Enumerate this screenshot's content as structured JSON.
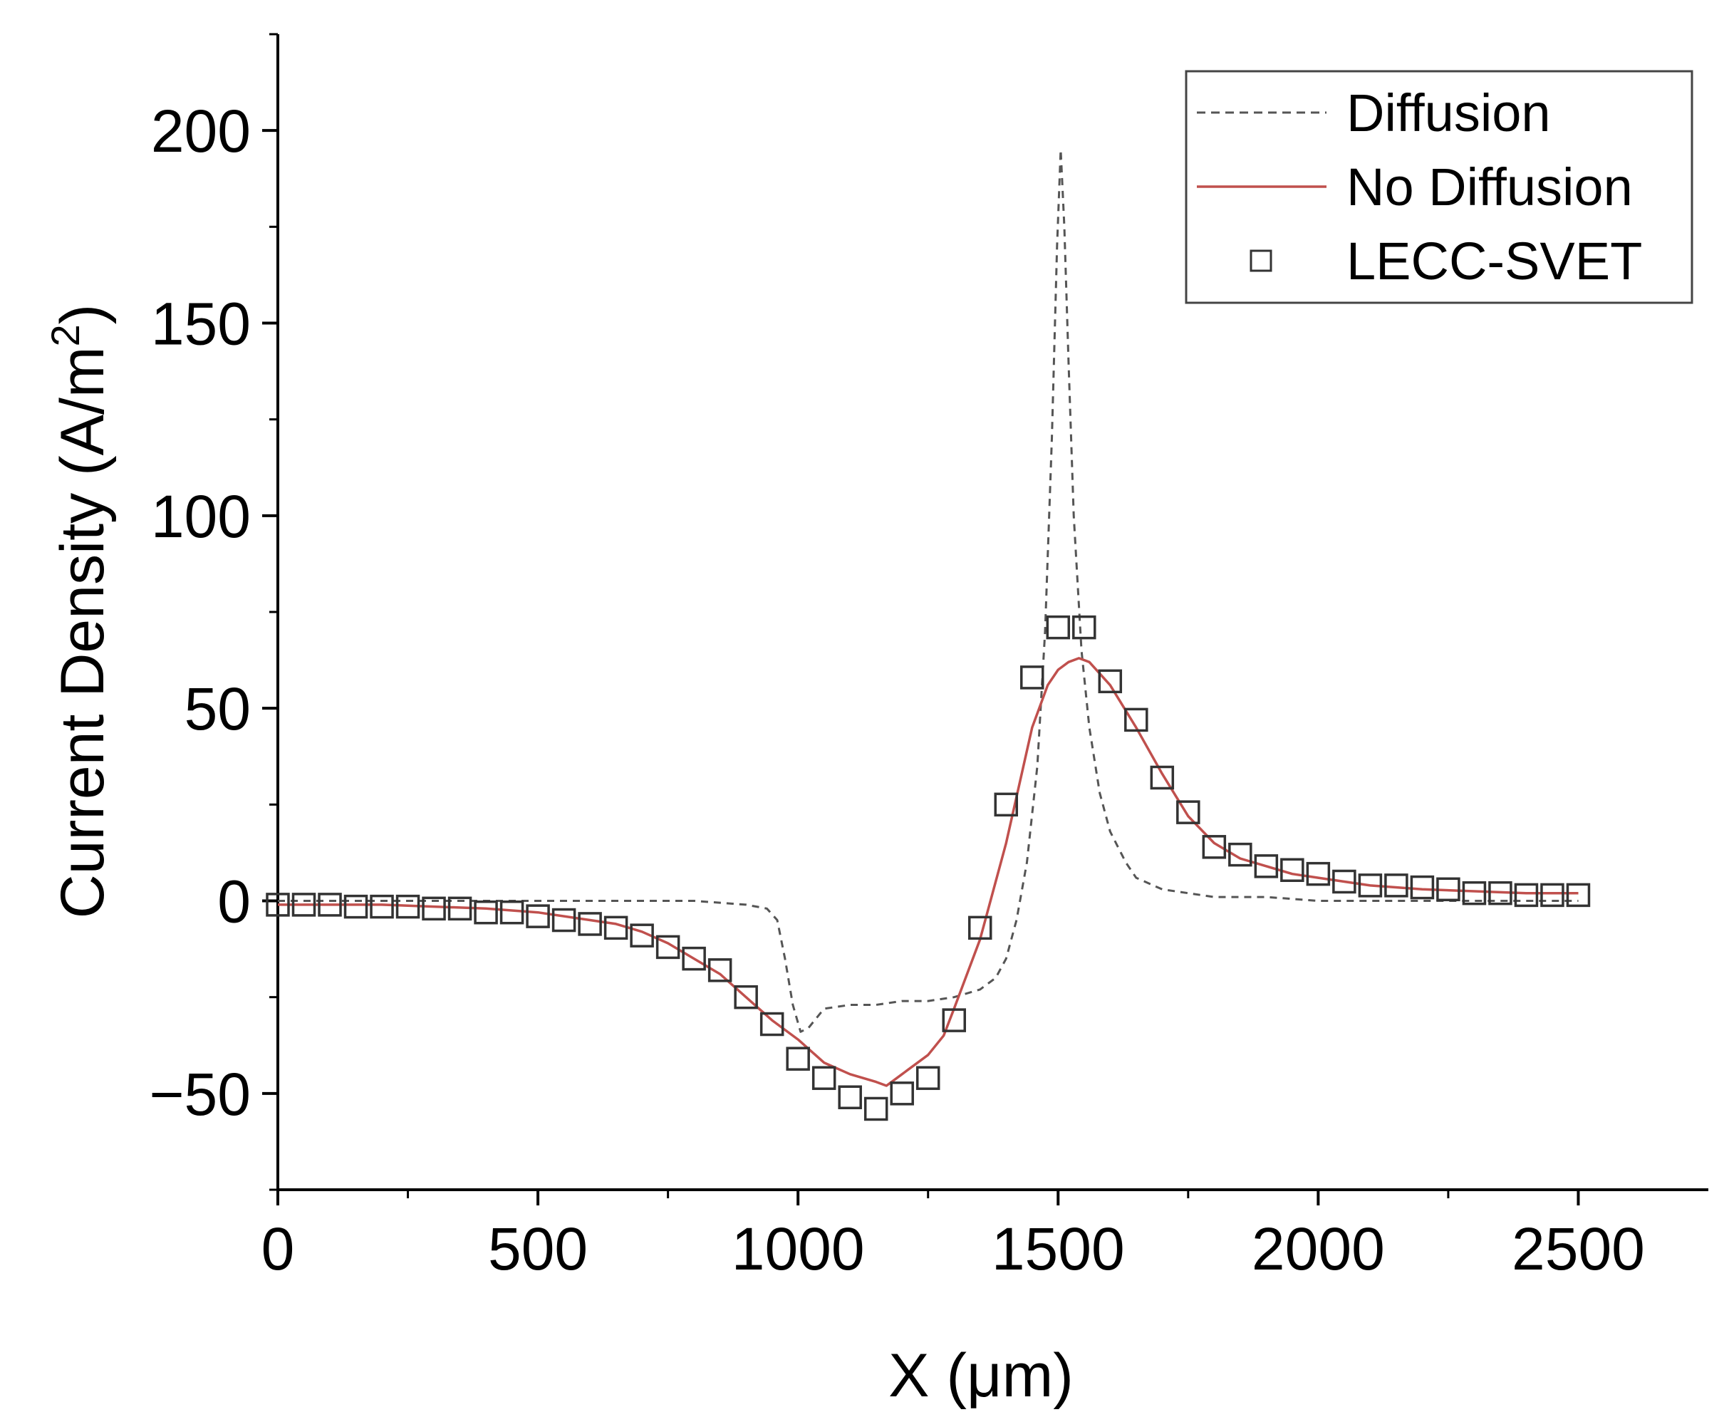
{
  "chart_data": {
    "type": "line",
    "title": "",
    "xlabel": "X (μm)",
    "ylabel_main": "Current Density (A/m",
    "ylabel_sup": "2",
    "ylabel_close": ")",
    "xlim": [
      0,
      2750
    ],
    "ylim": [
      -75,
      225
    ],
    "xticks": [
      0,
      500,
      1000,
      1500,
      2000,
      2500
    ],
    "xtick_labels": [
      "0",
      "500",
      "1000",
      "1500",
      "2000",
      "2500"
    ],
    "yticks": [
      -50,
      0,
      50,
      100,
      150,
      200
    ],
    "ytick_labels": [
      "−50",
      "0",
      "50",
      "100",
      "150",
      "200"
    ],
    "legend_position": "top-right",
    "colors": {
      "diffusion": "#555555",
      "no_diffusion": "#c0504d",
      "lecc_svet": "#333333",
      "axis": "#000000"
    },
    "series": [
      {
        "name": "Diffusion",
        "style": "dashed",
        "x": [
          0,
          100,
          200,
          300,
          400,
          500,
          600,
          700,
          800,
          900,
          940,
          960,
          975,
          990,
          1005,
          1020,
          1050,
          1100,
          1150,
          1200,
          1250,
          1300,
          1350,
          1380,
          1400,
          1420,
          1440,
          1460,
          1475,
          1488,
          1498,
          1505,
          1512,
          1520,
          1530,
          1545,
          1560,
          1580,
          1600,
          1630,
          1650,
          1700,
          1800,
          1900,
          2000,
          2100,
          2200,
          2300,
          2400,
          2500
        ],
        "y": [
          0,
          0,
          0,
          0,
          0,
          0,
          0,
          0,
          0,
          -1,
          -2,
          -5,
          -15,
          -27,
          -34,
          -33,
          -28,
          -27,
          -27,
          -26,
          -26,
          -25,
          -23,
          -20,
          -15,
          -5,
          10,
          35,
          70,
          120,
          170,
          195,
          175,
          140,
          100,
          65,
          45,
          28,
          18,
          10,
          6,
          3,
          1,
          1,
          0,
          0,
          0,
          0,
          0,
          0
        ]
      },
      {
        "name": "No Diffusion",
        "style": "solid",
        "x": [
          0,
          100,
          200,
          300,
          400,
          500,
          600,
          650,
          700,
          750,
          800,
          850,
          900,
          950,
          1000,
          1050,
          1100,
          1150,
          1170,
          1200,
          1250,
          1280,
          1300,
          1350,
          1400,
          1450,
          1480,
          1500,
          1520,
          1540,
          1560,
          1600,
          1650,
          1700,
          1750,
          1800,
          1850,
          1900,
          1950,
          2000,
          2050,
          2100,
          2200,
          2300,
          2400,
          2500
        ],
        "y": [
          -1,
          -1,
          -1,
          -1.5,
          -2,
          -3,
          -5,
          -6,
          -8,
          -11,
          -15,
          -19,
          -25,
          -31,
          -36,
          -42,
          -45,
          -47,
          -48,
          -45,
          -40,
          -35,
          -28,
          -10,
          15,
          45,
          56,
          60,
          62,
          63,
          62,
          56,
          45,
          33,
          22,
          15,
          11,
          9,
          7,
          6,
          5,
          4,
          3,
          2.5,
          2,
          2
        ]
      },
      {
        "name": "LECC-SVET",
        "style": "open-square",
        "x": [
          0,
          50,
          100,
          150,
          200,
          250,
          300,
          350,
          400,
          450,
          500,
          550,
          600,
          650,
          700,
          750,
          800,
          850,
          900,
          950,
          1000,
          1050,
          1100,
          1150,
          1200,
          1250,
          1300,
          1350,
          1400,
          1450,
          1500,
          1550,
          1600,
          1650,
          1700,
          1750,
          1800,
          1850,
          1900,
          1950,
          2000,
          2050,
          2100,
          2150,
          2200,
          2250,
          2300,
          2350,
          2400,
          2450,
          2500
        ],
        "y": [
          -1,
          -1,
          -1,
          -1.5,
          -1.5,
          -1.5,
          -2,
          -2,
          -3,
          -3,
          -4,
          -5,
          -6,
          -7,
          -9,
          -12,
          -15,
          -18,
          -25,
          -32,
          -41,
          -46,
          -51,
          -54,
          -50,
          -46,
          -31,
          -7,
          25,
          58,
          71,
          71,
          57,
          47,
          32,
          23,
          14,
          12,
          9,
          8,
          7,
          5,
          4,
          4,
          3.5,
          3,
          2,
          2,
          1.5,
          1.5,
          1.5
        ]
      }
    ]
  }
}
